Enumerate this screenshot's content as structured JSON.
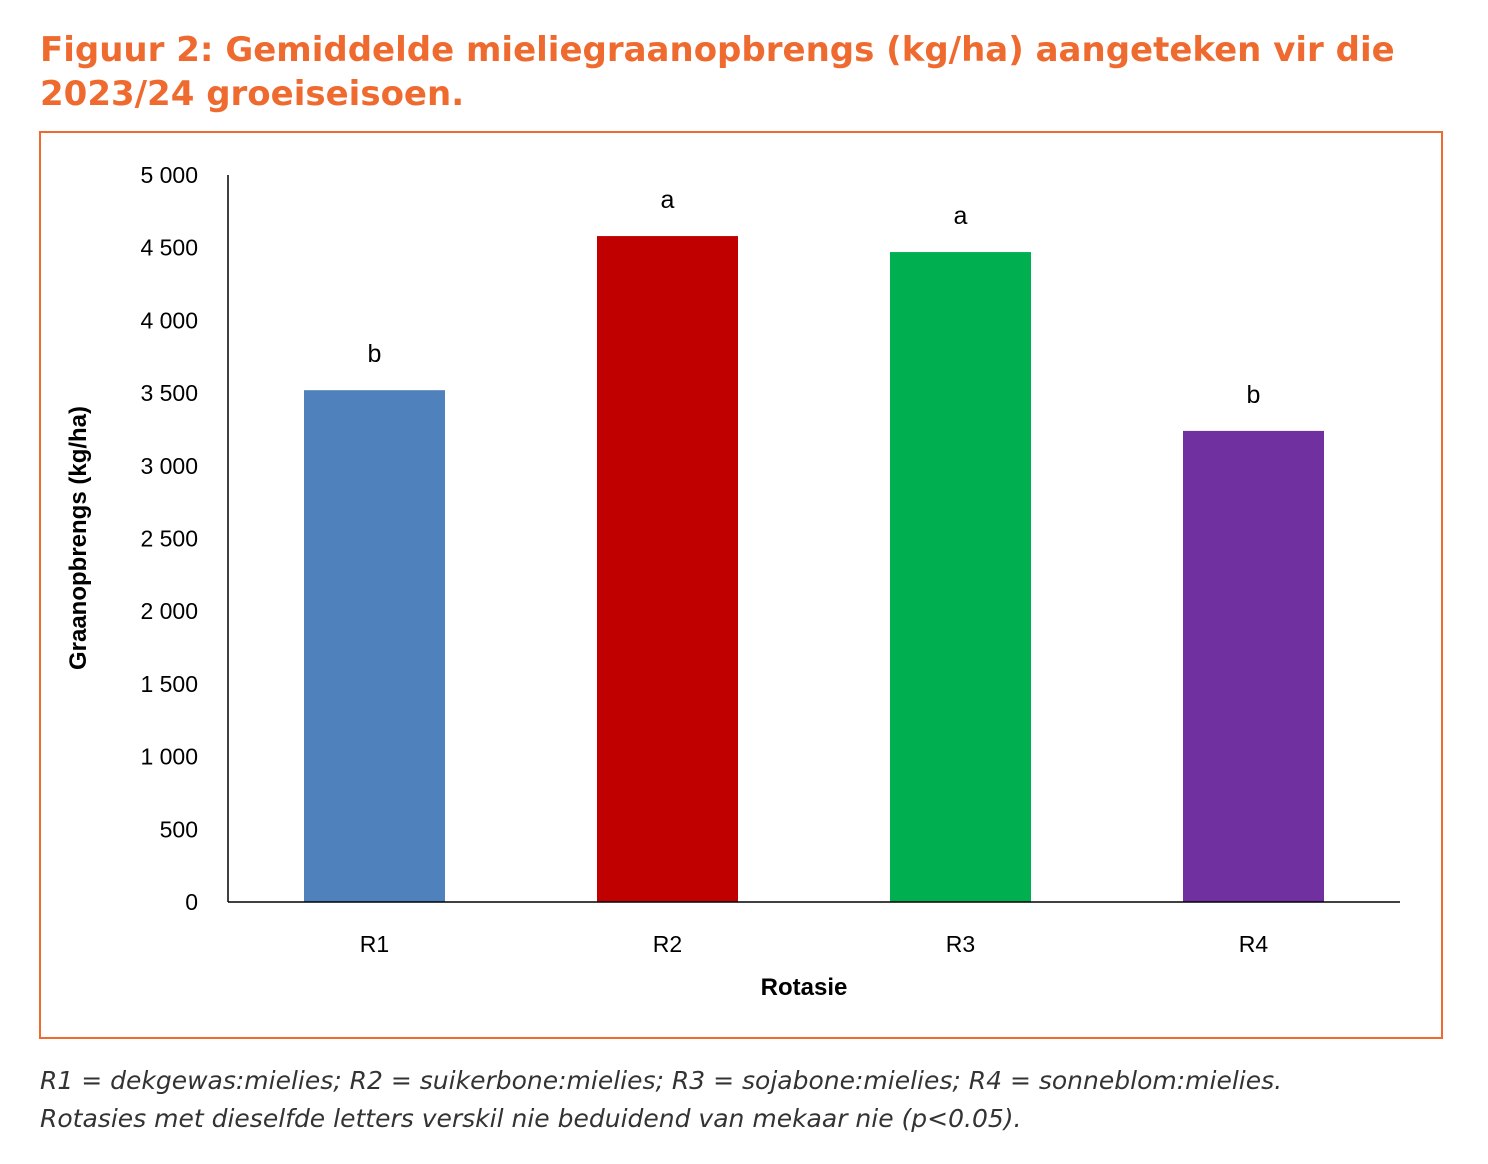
{
  "title": "Figuur 2: Gemiddelde mieliegraanopbrengs (kg/ha) aangeteken vir die 2023/24 groeiseisoen.",
  "caption_line1": "R1 = dekgewas:mielies; R2 = suikerbone:mielies; R3 = sojabone:mielies; R4 = sonneblom:mielies.",
  "caption_line2": "Rotasies met dieselfde letters verskil nie beduidend van mekaar nie (p<0.05).",
  "chart_data": {
    "type": "bar",
    "categories": [
      "R1",
      "R2",
      "R3",
      "R4"
    ],
    "values": [
      3520,
      4580,
      4470,
      3240
    ],
    "data_labels": [
      "b",
      "a",
      "a",
      "b"
    ],
    "colors": [
      "#4F81BD",
      "#C00000",
      "#00B050",
      "#7030A0"
    ],
    "xlabel": "Rotasie",
    "ylabel": "Graanopbrengs (kg/ha)",
    "ylim": [
      0,
      5000
    ],
    "yticks": [
      0,
      500,
      1000,
      1500,
      2000,
      2500,
      3000,
      3500,
      4000,
      4500,
      5000
    ],
    "ytick_labels": [
      "0",
      "500",
      "1 000",
      "1 500",
      "2 000",
      "2 500",
      "3 000",
      "3 500",
      "4 000",
      "4 500",
      "5 000"
    ],
    "grid": false,
    "legend": "none"
  }
}
